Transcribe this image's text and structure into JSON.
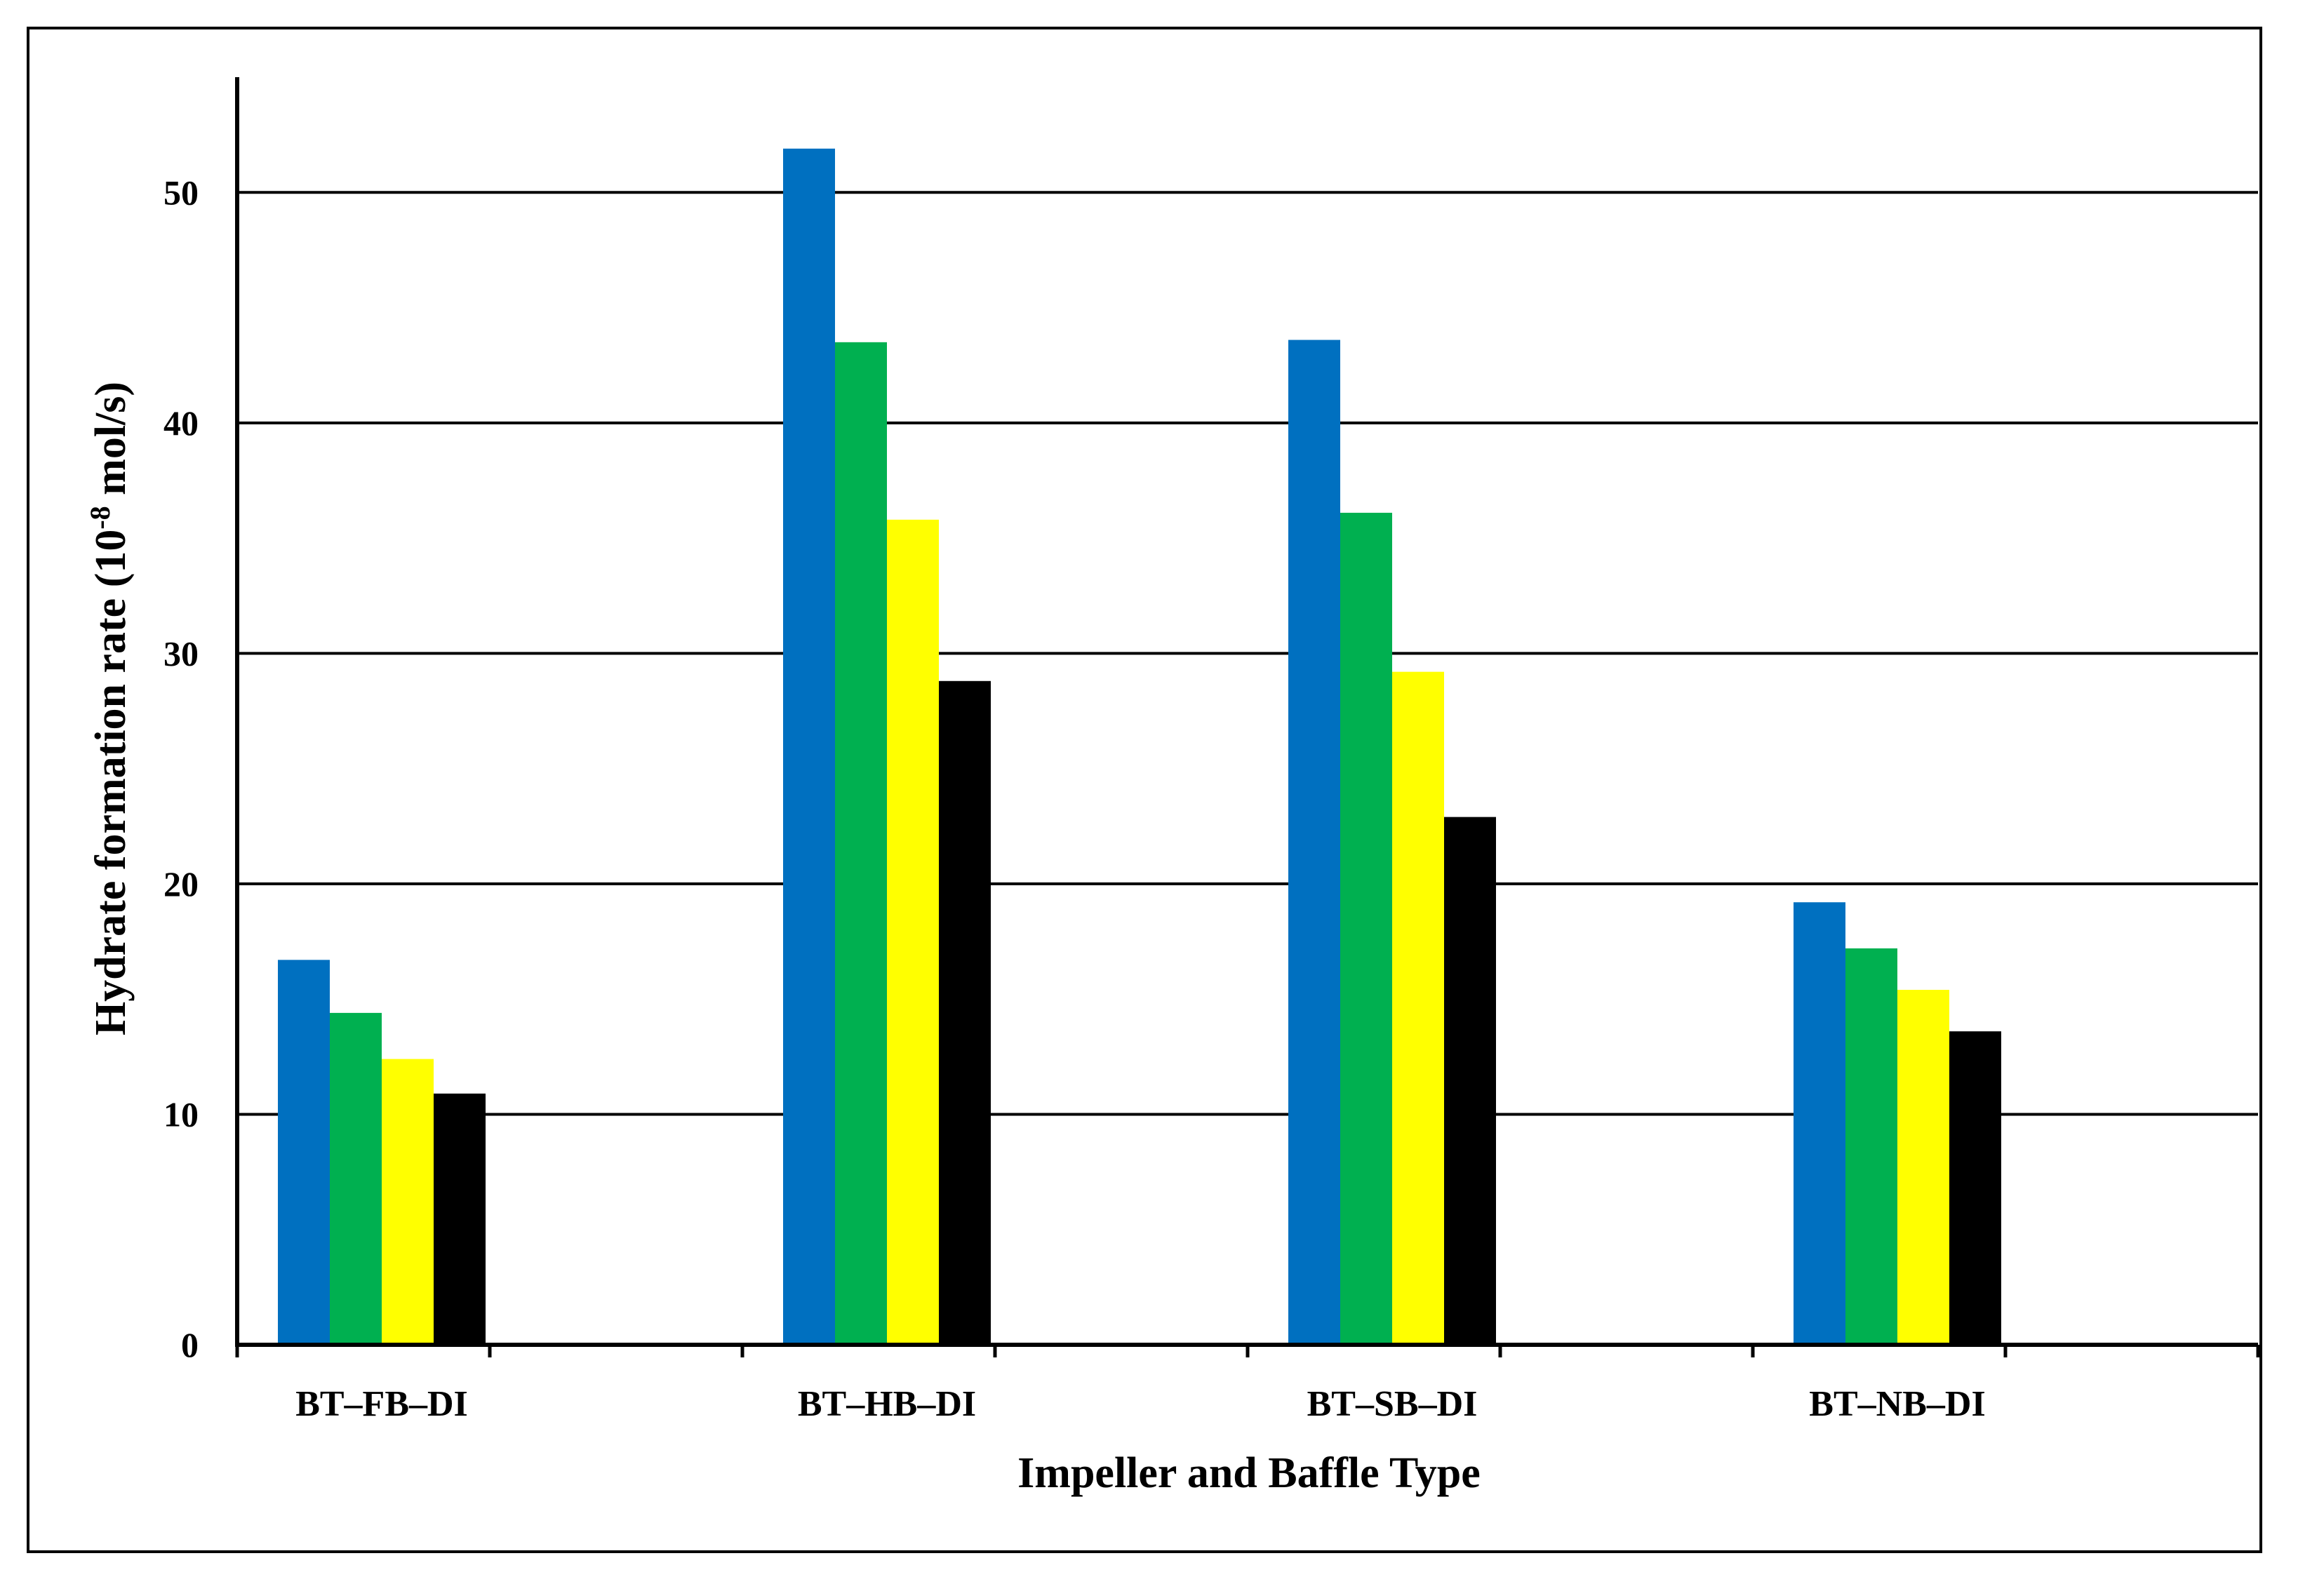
{
  "chart_data": {
    "type": "bar",
    "title": "",
    "xlabel": "Impeller and Baffle Type",
    "ylabel_main": "Hydrate formation rate (10",
    "ylabel_exp": "-8",
    "ylabel_unit": " mol/s)",
    "ylim": [
      0,
      55
    ],
    "yticks": [
      0,
      10,
      20,
      30,
      40,
      50
    ],
    "grid": true,
    "legend": "none",
    "categories": [
      "BT–FB–DI",
      "BT–HB–DI",
      "BT–SB–DI",
      "BT–NB–DI"
    ],
    "series": [
      {
        "name": "series-1",
        "color": "#0070C0",
        "values": [
          16.7,
          51.9,
          43.6,
          19.2
        ]
      },
      {
        "name": "series-2",
        "color": "#00B050",
        "values": [
          14.4,
          43.5,
          36.1,
          17.2
        ]
      },
      {
        "name": "series-3",
        "color": "#FFFF00",
        "values": [
          12.4,
          35.8,
          29.2,
          15.4
        ]
      },
      {
        "name": "series-4",
        "color": "#000000",
        "values": [
          10.9,
          28.8,
          22.9,
          13.6
        ]
      }
    ]
  }
}
